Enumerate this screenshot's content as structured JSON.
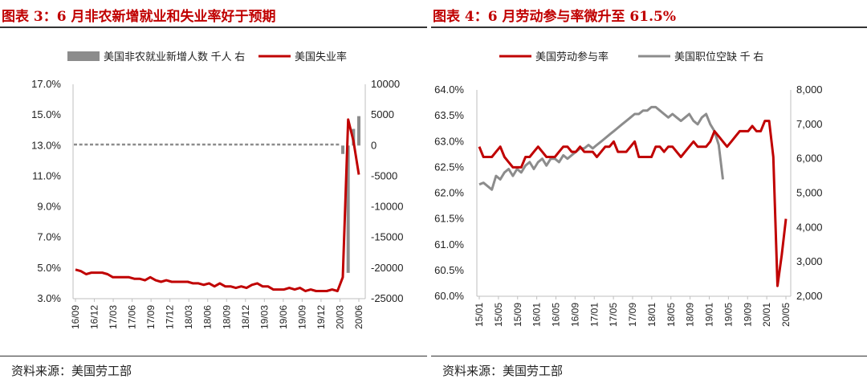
{
  "left": {
    "title": "图表 3：6 月非农新增就业和失业率好于预期",
    "source": "资料来源：美国劳工部",
    "chart_data": {
      "type": "bar+line",
      "legend": [
        "美国非农就业新增人数 千人 右",
        "美国失业率"
      ],
      "y_left_ticks": [
        "17.0%",
        "15.0%",
        "13.0%",
        "11.0%",
        "9.0%",
        "7.0%",
        "5.0%",
        "3.0%"
      ],
      "y_right_ticks": [
        "10000",
        "5000",
        "0",
        "-5000",
        "-10000",
        "-15000",
        "-20000",
        "-25000"
      ],
      "x_ticks": [
        "16/09",
        "16/12",
        "17/03",
        "17/06",
        "17/09",
        "17/12",
        "18/03",
        "18/06",
        "18/09",
        "18/12",
        "19/03",
        "19/06",
        "19/09",
        "19/12",
        "20/03",
        "20/06"
      ],
      "ylim_left": [
        3,
        17
      ],
      "ylim_right": [
        -25000,
        10000
      ],
      "series": [
        {
          "name": "美国失业率",
          "axis": "left",
          "values": [
            4.9,
            4.8,
            4.6,
            4.7,
            4.7,
            4.7,
            4.6,
            4.4,
            4.4,
            4.4,
            4.4,
            4.3,
            4.3,
            4.2,
            4.4,
            4.2,
            4.1,
            4.2,
            4.1,
            4.1,
            4.1,
            4.1,
            4.0,
            4.0,
            3.9,
            4.0,
            3.8,
            4.0,
            3.8,
            3.8,
            3.7,
            3.8,
            3.7,
            3.9,
            4.0,
            3.8,
            3.8,
            3.6,
            3.6,
            3.6,
            3.7,
            3.6,
            3.7,
            3.5,
            3.6,
            3.5,
            3.5,
            3.5,
            3.6,
            3.5,
            4.4,
            14.7,
            13.3,
            11.1
          ]
        },
        {
          "name": "美国非农就业新增人数 千人 右",
          "axis": "right",
          "values": [
            246,
            123,
            165,
            155,
            216,
            232,
            219,
            153,
            174,
            212,
            181,
            142,
            221,
            225,
            216,
            166,
            219,
            245,
            220,
            225,
            213,
            217,
            216,
            201,
            237,
            211,
            239,
            237,
            207,
            248,
            238,
            214,
            205,
            200,
            212,
            210,
            222,
            209,
            199,
            203,
            192,
            201,
            208,
            200,
            196,
            201,
            207,
            190,
            214,
            206,
            -1373,
            -20787,
            2725,
            4800
          ]
        }
      ]
    }
  },
  "right": {
    "title": "图表 4：6 月劳动参与率微升至 61.5%",
    "source": "资料来源：美国劳工部",
    "chart_data": {
      "type": "line",
      "legend": [
        "美国劳动参与率",
        "美国职位空缺 千 右"
      ],
      "y_left_ticks": [
        "64.0%",
        "63.5%",
        "63.0%",
        "62.5%",
        "62.0%",
        "61.5%",
        "61.0%",
        "60.5%",
        "60.0%"
      ],
      "y_right_ticks": [
        "8,000",
        "7,000",
        "6,000",
        "5,000",
        "4,000",
        "3,000",
        "2,000"
      ],
      "x_ticks": [
        "15/01",
        "15/05",
        "15/09",
        "16/01",
        "16/05",
        "16/09",
        "17/01",
        "17/05",
        "17/09",
        "18/01",
        "18/05",
        "18/09",
        "19/01",
        "19/05",
        "19/09",
        "20/01",
        "20/05"
      ],
      "ylim_left": [
        60,
        64
      ],
      "ylim_right": [
        2000,
        8000
      ],
      "series": [
        {
          "name": "美国劳动参与率",
          "axis": "left",
          "values": [
            62.9,
            62.7,
            62.7,
            62.7,
            62.8,
            62.9,
            62.7,
            62.6,
            62.5,
            62.5,
            62.5,
            62.7,
            62.7,
            62.8,
            62.9,
            62.8,
            62.7,
            62.7,
            62.7,
            62.8,
            62.9,
            62.9,
            62.8,
            62.8,
            62.9,
            62.8,
            62.8,
            62.8,
            62.7,
            62.8,
            62.9,
            62.9,
            63.0,
            62.8,
            62.8,
            62.8,
            62.9,
            63.0,
            62.7,
            62.7,
            62.7,
            62.7,
            62.9,
            62.9,
            62.8,
            62.9,
            62.9,
            62.8,
            62.7,
            62.8,
            62.9,
            63.0,
            62.9,
            62.9,
            62.9,
            63.0,
            63.2,
            63.1,
            63.0,
            62.9,
            63.0,
            63.1,
            63.2,
            63.2,
            63.2,
            63.3,
            63.2,
            63.2,
            63.4,
            63.4,
            62.7,
            60.2,
            60.8,
            61.5
          ]
        },
        {
          "name": "美国职位空缺 千 右",
          "axis": "right",
          "values": [
            5250,
            5300,
            5200,
            5100,
            5500,
            5400,
            5600,
            5700,
            5500,
            5700,
            5600,
            5800,
            5900,
            5700,
            5900,
            6000,
            5800,
            6000,
            6000,
            5900,
            6100,
            6000,
            6100,
            6200,
            6300,
            6300,
            6400,
            6300,
            6400,
            6500,
            6600,
            6700,
            6800,
            6900,
            7000,
            7100,
            7200,
            7300,
            7300,
            7400,
            7400,
            7500,
            7500,
            7400,
            7300,
            7200,
            7300,
            7200,
            7100,
            7200,
            7300,
            7100,
            7000,
            7200,
            7300,
            7000,
            6800,
            6400,
            5400
          ]
        }
      ]
    }
  }
}
